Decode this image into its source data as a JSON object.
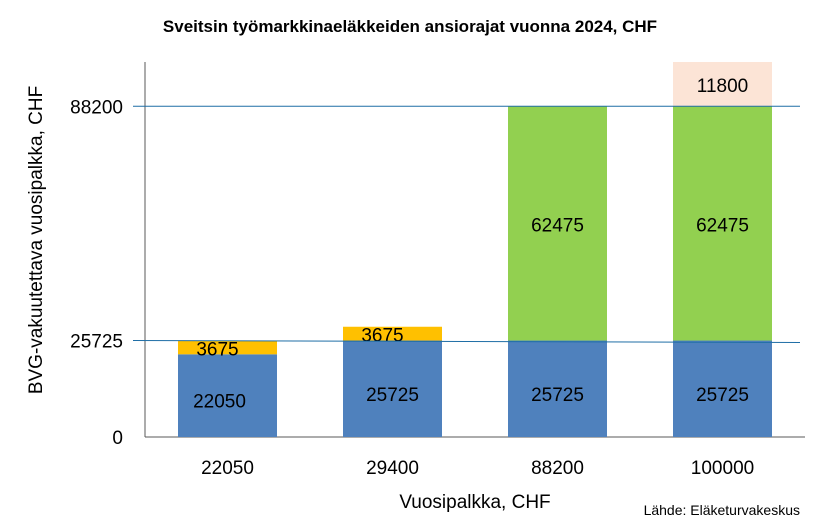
{
  "chart_data": {
    "type": "bar",
    "stacked": true,
    "title": "Sveitsin työmarkkinaeläkkeiden ansiorajat vuonna 2024,  CHF",
    "xlabel": "Vuosipalkka, CHF",
    "ylabel": "BVG-vakuutettava vuosipalkka, CHF",
    "source": "Lähde: Eläketurvakeskus",
    "categories": [
      "22050",
      "29400",
      "88200",
      "100000"
    ],
    "ylim": [
      0,
      100000
    ],
    "yticks": [
      {
        "value": 0,
        "label": "0"
      },
      {
        "value": 25725,
        "label": "25725"
      },
      {
        "value": 88200,
        "label": "88200"
      }
    ],
    "series": [
      {
        "color": "#4F81BD",
        "values": [
          22050,
          25725,
          25725,
          25725
        ],
        "labels": [
          "22050",
          "25725",
          "25725",
          "25725"
        ]
      },
      {
        "color": "#FFC000",
        "values": [
          3675,
          3675,
          0,
          0
        ],
        "labels": [
          "3675",
          "3675",
          "",
          ""
        ]
      },
      {
        "color": "#92D050",
        "values": [
          0,
          0,
          62475,
          62475
        ],
        "labels": [
          "",
          "",
          "62475",
          "62475"
        ]
      },
      {
        "color": "#FCE4D6",
        "values": [
          0,
          0,
          0,
          11800
        ],
        "labels": [
          "",
          "",
          "",
          "11800"
        ]
      }
    ],
    "reference_lines": [
      {
        "from": 25725,
        "to": 25200,
        "color": "#1F6EA6"
      },
      {
        "from": 88200,
        "to": 88200,
        "color": "#1F6EA6"
      }
    ],
    "grid": false,
    "legend": "none"
  }
}
